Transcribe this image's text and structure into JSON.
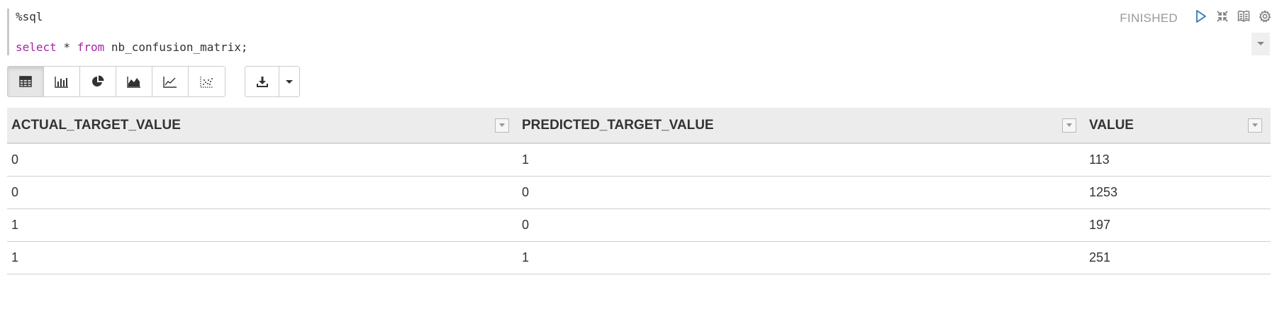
{
  "editor": {
    "line1": "%sql",
    "line2_keyword1": "select",
    "line2_part1": " * ",
    "line2_keyword2": "from",
    "line2_part2": " nb_confusion_matrix;"
  },
  "status": "FINISHED",
  "toolbar_icons": [
    "play-icon",
    "collapse-icon",
    "book-icon",
    "gear-icon"
  ],
  "accent_color": "#337ab7",
  "visualizations": [
    {
      "name": "table",
      "active": true
    },
    {
      "name": "bar-chart",
      "active": false
    },
    {
      "name": "pie-chart",
      "active": false
    },
    {
      "name": "area-chart",
      "active": false
    },
    {
      "name": "line-chart",
      "active": false
    },
    {
      "name": "scatter-chart",
      "active": false
    }
  ],
  "table": {
    "columns": [
      "ACTUAL_TARGET_VALUE",
      "PREDICTED_TARGET_VALUE",
      "VALUE"
    ],
    "rows": [
      [
        "0",
        "1",
        "113"
      ],
      [
        "0",
        "0",
        "1253"
      ],
      [
        "1",
        "0",
        "197"
      ],
      [
        "1",
        "1",
        "251"
      ]
    ]
  }
}
